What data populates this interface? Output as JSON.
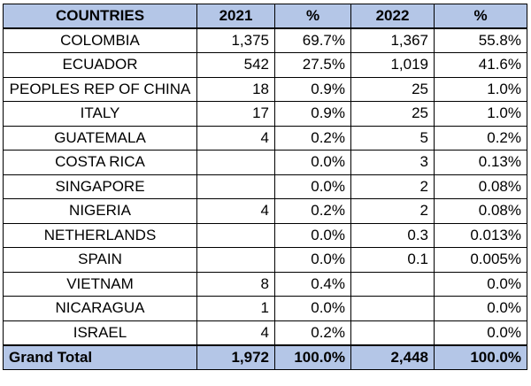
{
  "table": {
    "header": [
      "COUNTRIES",
      "2021",
      "%",
      "2022",
      "%"
    ],
    "rows": [
      [
        "COLOMBIA",
        "1,375",
        "69.7%",
        "1,367",
        "55.8%"
      ],
      [
        "ECUADOR",
        "542",
        "27.5%",
        "1,019",
        "41.6%"
      ],
      [
        "PEOPLES REP OF CHINA",
        "18",
        "0.9%",
        "25",
        "1.0%"
      ],
      [
        "ITALY",
        "17",
        "0.9%",
        "25",
        "1.0%"
      ],
      [
        "GUATEMALA",
        "4",
        "0.2%",
        "5",
        "0.2%"
      ],
      [
        "COSTA RICA",
        null,
        "0.0%",
        "3",
        "0.13%"
      ],
      [
        "SINGAPORE",
        null,
        "0.0%",
        "2",
        "0.08%"
      ],
      [
        "NIGERIA",
        "4",
        "0.2%",
        "2",
        "0.08%"
      ],
      [
        "NETHERLANDS",
        null,
        "0.0%",
        "0.3",
        "0.013%"
      ],
      [
        "SPAIN",
        null,
        "0.0%",
        "0.1",
        "0.005%"
      ],
      [
        "VIETNAM",
        "8",
        "0.4%",
        null,
        "0.0%"
      ],
      [
        "NICARAGUA",
        "1",
        "0.0%",
        null,
        "0.0%"
      ],
      [
        "ISRAEL",
        "4",
        "0.2%",
        null,
        "0.0%"
      ]
    ],
    "total": [
      "Grand Total",
      "1,972",
      "100.0%",
      "2,448",
      "100.0%"
    ]
  }
}
